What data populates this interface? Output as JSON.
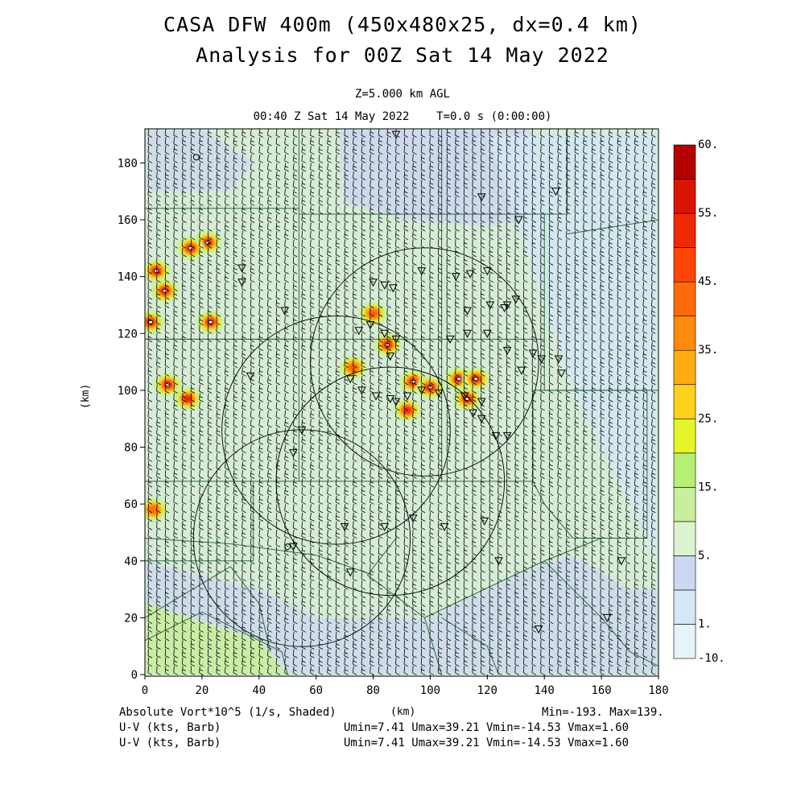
{
  "title_line1": "CASA DFW 400m (450x480x25, dx=0.4 km)",
  "title_line2": "Analysis for 00Z Sat 14 May 2022",
  "subtitle_line1": "Z=5.000 km AGL",
  "subtitle_line2": "00:40 Z Sat 14 May 2022    T=0.0 s (0:00:00)",
  "footer": {
    "field_label": "Absolute Vort*10^5 (1/s, Shaded)",
    "x_unit": "(km)",
    "field_range": "Min=-193. Max=139.",
    "vector1_label": "U-V (kts, Barb)",
    "vector1_range": "Umin=7.41 Umax=39.21 Vmin=-14.53 Vmax=1.60",
    "vector2_label": "U-V (kts, Barb)",
    "vector2_range": "Umin=7.41 Umax=39.21 Vmin=-14.53 Vmax=1.60"
  },
  "chart_data": {
    "type": "heatmap",
    "xlabel": "(km)",
    "ylabel": "(km)",
    "xlim": [
      0,
      180
    ],
    "ylim": [
      0,
      192
    ],
    "x_ticks": [
      "0",
      "20",
      "40",
      "60",
      "80",
      "100",
      "120",
      "140",
      "160",
      "180"
    ],
    "y_ticks": [
      "0",
      "20",
      "40",
      "60",
      "80",
      "100",
      "120",
      "140",
      "160",
      "180"
    ],
    "colorbar": {
      "labels": [
        "60.",
        "55.",
        "45.",
        "35.",
        "25.",
        "15.",
        "5.",
        "1.",
        "-10."
      ],
      "levels": [
        -10,
        0,
        1,
        2,
        5,
        10,
        15,
        20,
        25,
        30,
        35,
        40,
        45,
        50,
        55,
        60
      ],
      "colors": [
        "#e6f4fa",
        "#d3e8f4",
        "#cdd7f1",
        "#dcf3d0",
        "#c8eea0",
        "#b7ee74",
        "#e4f62a",
        "#ffd21c",
        "#ffad12",
        "#ff8a0d",
        "#ff6a08",
        "#ff4505",
        "#ef2a03",
        "#d91402",
        "#b50000"
      ]
    },
    "background_level": "#d6ecd6",
    "light_blue_regions": "top-center and bottom-right",
    "radar_range_rings": [
      {
        "cx": 98,
        "cy": 110,
        "r": 40
      },
      {
        "cx": 55,
        "cy": 48,
        "r": 38
      },
      {
        "cx": 86,
        "cy": 68,
        "r": 40
      },
      {
        "cx": 67,
        "cy": 86,
        "r": 40
      }
    ],
    "stations_triangle": [
      [
        88,
        190
      ],
      [
        118,
        168
      ],
      [
        144,
        170
      ],
      [
        131,
        160
      ],
      [
        34,
        143
      ],
      [
        34,
        138
      ],
      [
        49,
        128
      ],
      [
        37,
        105
      ],
      [
        80,
        138
      ],
      [
        84,
        137
      ],
      [
        87,
        136
      ],
      [
        97,
        142
      ],
      [
        109,
        140
      ],
      [
        114,
        141
      ],
      [
        120,
        142
      ],
      [
        130,
        132
      ],
      [
        127,
        130
      ],
      [
        126,
        129
      ],
      [
        121,
        130
      ],
      [
        113,
        128
      ],
      [
        120,
        120
      ],
      [
        113,
        120
      ],
      [
        107,
        118
      ],
      [
        75,
        121
      ],
      [
        79,
        123
      ],
      [
        84,
        120
      ],
      [
        88,
        118
      ],
      [
        86,
        112
      ],
      [
        127,
        114
      ],
      [
        136,
        113
      ],
      [
        132,
        107
      ],
      [
        139,
        111
      ],
      [
        145,
        111
      ],
      [
        146,
        106
      ],
      [
        72,
        104
      ],
      [
        76,
        100
      ],
      [
        81,
        98
      ],
      [
        86,
        97
      ],
      [
        88,
        96
      ],
      [
        92,
        98
      ],
      [
        97,
        100
      ],
      [
        103,
        99
      ],
      [
        112,
        98
      ],
      [
        115,
        92
      ],
      [
        118,
        96
      ],
      [
        118,
        90
      ],
      [
        123,
        84
      ],
      [
        127,
        84
      ],
      [
        55,
        86
      ],
      [
        52,
        78
      ],
      [
        70,
        52
      ],
      [
        84,
        52
      ],
      [
        94,
        55
      ],
      [
        105,
        52
      ],
      [
        119,
        54
      ],
      [
        124,
        40
      ],
      [
        72,
        36
      ],
      [
        52,
        45
      ],
      [
        138,
        16
      ],
      [
        162,
        20
      ],
      [
        167,
        40
      ]
    ],
    "stations_circle": [
      [
        18,
        182
      ],
      [
        50,
        45
      ]
    ],
    "vorticity_maxima": [
      {
        "x": 22,
        "y": 152,
        "value": 60
      },
      {
        "x": 16,
        "y": 150,
        "value": 60
      },
      {
        "x": 4,
        "y": 142,
        "value": 60
      },
      {
        "x": 7,
        "y": 135,
        "value": 55
      },
      {
        "x": 23,
        "y": 124,
        "value": 55
      },
      {
        "x": 2,
        "y": 124,
        "value": 55
      },
      {
        "x": 8,
        "y": 102,
        "value": 55
      },
      {
        "x": 15,
        "y": 97,
        "value": 50
      },
      {
        "x": 85,
        "y": 116,
        "value": 55
      },
      {
        "x": 94,
        "y": 103,
        "value": 60
      },
      {
        "x": 100,
        "y": 101,
        "value": 60
      },
      {
        "x": 110,
        "y": 104,
        "value": 60
      },
      {
        "x": 116,
        "y": 104,
        "value": 60
      },
      {
        "x": 113,
        "y": 97,
        "value": 55
      },
      {
        "x": 73,
        "y": 108,
        "value": 40
      },
      {
        "x": 80,
        "y": 127,
        "value": 40
      },
      {
        "x": 92,
        "y": 93,
        "value": 45
      },
      {
        "x": 3,
        "y": 58,
        "value": 35
      }
    ]
  }
}
